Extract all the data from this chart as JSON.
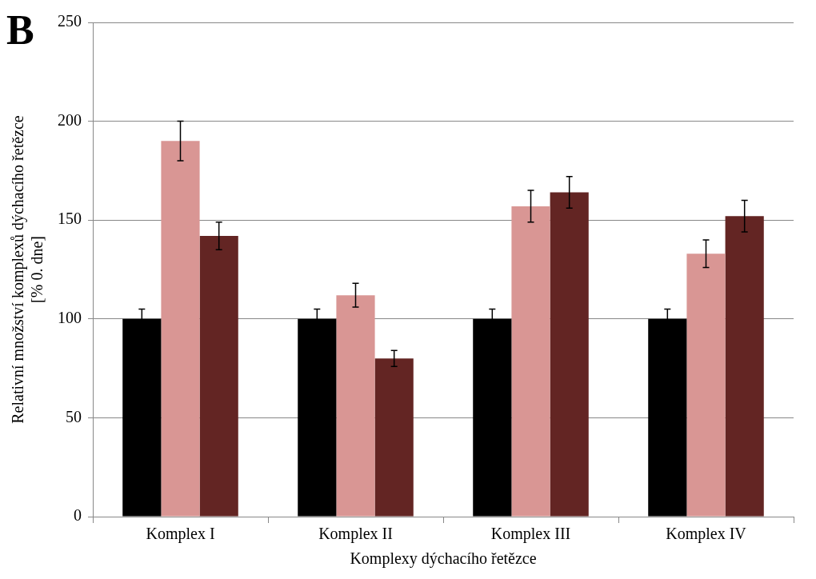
{
  "chart_data": {
    "type": "bar",
    "title": "B",
    "xlabel": "Komplexy dýchacího řetězce",
    "ylabel": "Relativní množství komplexů dýchacího řetězce\n[% 0. dne]",
    "categories": [
      "Komplex I",
      "Komplex II",
      "Komplex III",
      "Komplex IV"
    ],
    "series": [
      {
        "color": "#000000",
        "values": [
          100,
          100,
          100,
          100
        ],
        "errors": [
          5,
          5,
          5,
          5
        ]
      },
      {
        "color": "#d99694",
        "values": [
          190,
          112,
          157,
          133
        ],
        "errors": [
          10,
          6,
          8,
          7
        ]
      },
      {
        "color": "#632523",
        "values": [
          142,
          80,
          164,
          152
        ],
        "errors": [
          7,
          4,
          8,
          8
        ]
      }
    ],
    "ylim": [
      0,
      250
    ],
    "yticks": [
      0,
      50,
      100,
      150,
      200,
      250
    ],
    "grid": "y",
    "legend": false
  }
}
